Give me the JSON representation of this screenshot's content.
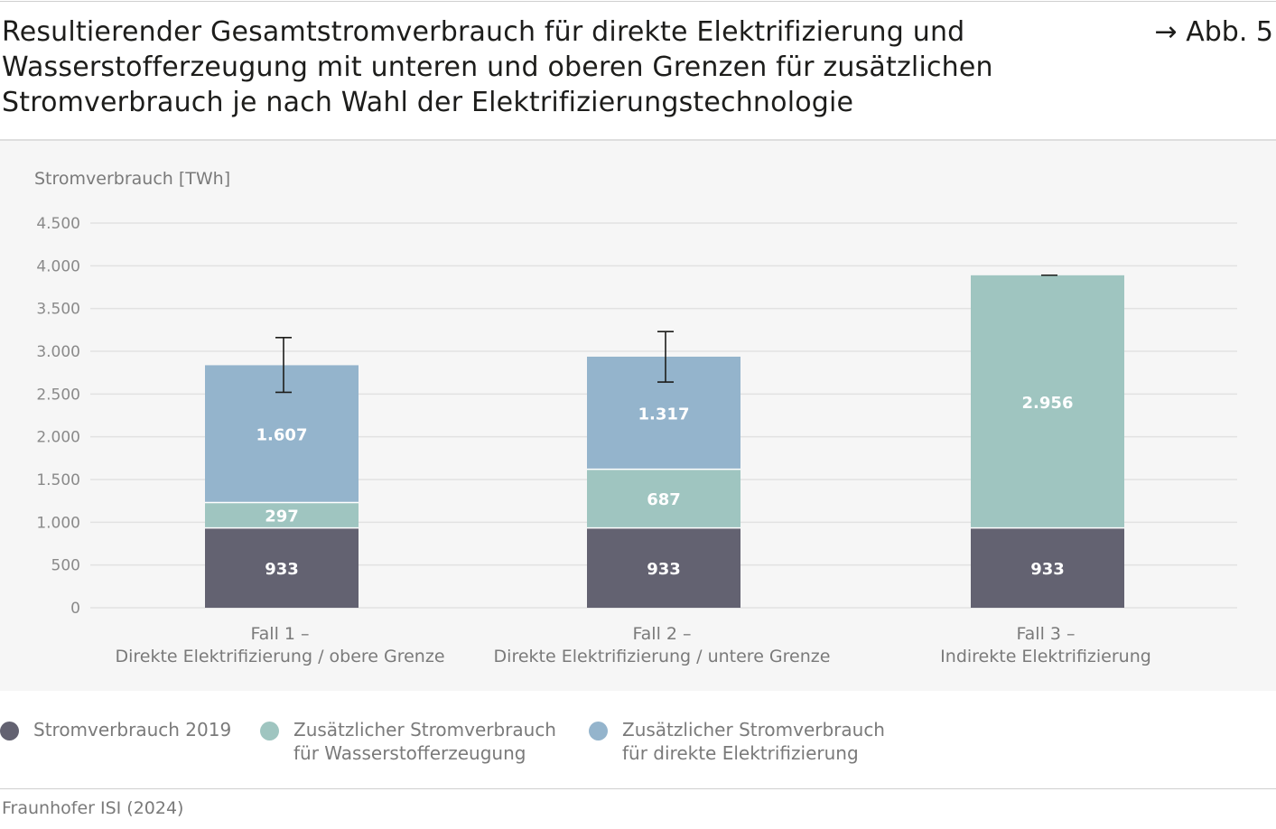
{
  "figure": {
    "title": "Resultierender Gesamtstromverbrauch für direkte Elektrifizierung und\nWasserstofferzeugung mit unteren und oberen Grenzen für zusätzlichen\nStromverbrauch je nach Wahl der Elektrifizierungstechnologie",
    "reference": "→ Abb. 5",
    "source": "Fraunhofer ISI (2024)"
  },
  "chart_data": {
    "type": "bar",
    "stacked": true,
    "ylabel": "Stromverbrauch [TWh]",
    "ylim": [
      0,
      4500
    ],
    "yticks": [
      0,
      500,
      1000,
      1500,
      2000,
      2500,
      3000,
      3500,
      4000,
      4500
    ],
    "ytick_labels": [
      "0",
      "500",
      "1.000",
      "1.500",
      "2.000",
      "2.500",
      "3.000",
      "3.500",
      "4.000",
      "4.500"
    ],
    "grid": true,
    "legend_position": "bottom",
    "categories": [
      [
        "Fall 1 –",
        "Direkte Elektrifizierung / obere Grenze"
      ],
      [
        "Fall 2 –",
        "Direkte Elektrifizierung / untere Grenze"
      ],
      [
        "Fall 3 –",
        "Indirekte Elektrifizierung"
      ]
    ],
    "series": [
      {
        "name": "Stromverbrauch 2019",
        "color": "#636271",
        "values": [
          933,
          933,
          933
        ],
        "labels": [
          "933",
          "933",
          "933"
        ]
      },
      {
        "name": "Zusätzlicher Stromverbrauch\nfür Wasserstofferzeugung",
        "color": "#9fc5c0",
        "values": [
          297,
          687,
          2956
        ],
        "labels": [
          "297",
          "687",
          "2.956"
        ]
      },
      {
        "name": "Zusätzlicher Stromverbrauch\nfür direkte Elektrifizierung",
        "color": "#94b4cc",
        "values": [
          1607,
          1317,
          0
        ],
        "labels": [
          "1.607",
          "1.317",
          ""
        ]
      }
    ],
    "error_bars": [
      {
        "low": 2520,
        "high": 3160
      },
      {
        "low": 2640,
        "high": 3230
      },
      {
        "low": 3890,
        "high": 3890
      }
    ]
  }
}
